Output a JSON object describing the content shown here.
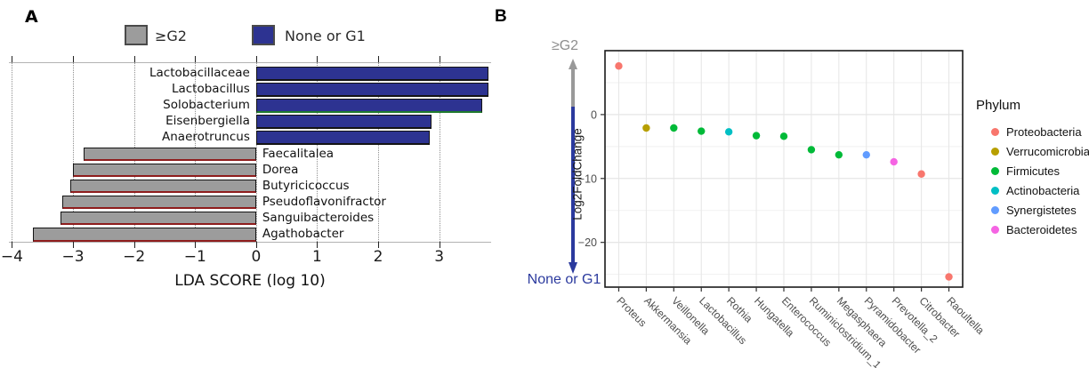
{
  "figure": {
    "background": "#ffffff"
  },
  "chart_data": [
    {
      "panel_label": "A",
      "type": "bar",
      "orientation": "horizontal",
      "xlabel": "LDA SCORE (log 10)",
      "xlim": [
        -4.05,
        3.85
      ],
      "xticks": [
        -4,
        -3,
        -2,
        -1,
        0,
        1,
        2,
        3
      ],
      "grid": "dotted-vertical",
      "legend": [
        {
          "label": "≥G2",
          "color": "#9c9c9c"
        },
        {
          "label": "None or G1",
          "color": "#2d3391"
        }
      ],
      "bar_edge_colors": {
        "negative_group": "#8f1d1d",
        "positive_group": "#141414",
        "Solobacterium": "#1f7a2e"
      },
      "bars": [
        {
          "name": "Lactobacillaceae",
          "group": "None or G1",
          "value": 3.8
        },
        {
          "name": "Lactobacillus",
          "group": "None or G1",
          "value": 3.8
        },
        {
          "name": "Solobacterium",
          "group": "None or G1",
          "value": 3.7
        },
        {
          "name": "Eisenbergiella",
          "group": "None or G1",
          "value": 2.87
        },
        {
          "name": "Anaerotruncus",
          "group": "None or G1",
          "value": 2.84
        },
        {
          "name": "Faecalitalea",
          "group": "≥G2",
          "value": -2.83
        },
        {
          "name": "Dorea",
          "group": "≥G2",
          "value": -3.0
        },
        {
          "name": "Butyricicoccus",
          "group": "≥G2",
          "value": -3.05
        },
        {
          "name": "Pseudoflavonifractor",
          "group": "≥G2",
          "value": -3.17
        },
        {
          "name": "Sanguibacteroides",
          "group": "≥G2",
          "value": -3.21
        },
        {
          "name": "Agathobacter",
          "group": "≥G2",
          "value": -3.65
        }
      ]
    },
    {
      "panel_label": "B",
      "type": "scatter",
      "ylabel": "Log2FoldChange",
      "y_axis_top_label": "≥G2",
      "y_axis_bottom_label": "None or G1",
      "ylim": [
        -27,
        10
      ],
      "yticks": [
        0,
        -10,
        -20
      ],
      "ytick_minor": [
        5,
        -5,
        -15,
        -25
      ],
      "grid": true,
      "legend_position": "right",
      "legend_title": "Phylum",
      "phyla": [
        {
          "name": "Proteobacteria",
          "color": "#F8766D"
        },
        {
          "name": "Verrucomicrobia",
          "color": "#B79F00"
        },
        {
          "name": "Firmicutes",
          "color": "#00BA38"
        },
        {
          "name": "Actinobacteria",
          "color": "#00BFC4"
        },
        {
          "name": "Synergistetes",
          "color": "#619CFF"
        },
        {
          "name": "Bacteroidetes",
          "color": "#F564E3"
        }
      ],
      "points": [
        {
          "genus": "Proteus",
          "phylum": "Proteobacteria",
          "log2fc": 7.6
        },
        {
          "genus": "Akkermansia",
          "phylum": "Verrucomicrobia",
          "log2fc": -2.1
        },
        {
          "genus": "Veillonella",
          "phylum": "Firmicutes",
          "log2fc": -2.1
        },
        {
          "genus": "Lactobacillus",
          "phylum": "Firmicutes",
          "log2fc": -2.6
        },
        {
          "genus": "Rothia",
          "phylum": "Actinobacteria",
          "log2fc": -2.7
        },
        {
          "genus": "Hungatella",
          "phylum": "Firmicutes",
          "log2fc": -3.3
        },
        {
          "genus": "Enterococcus",
          "phylum": "Firmicutes",
          "log2fc": -3.4
        },
        {
          "genus": "Ruminiclostridium_1",
          "phylum": "Firmicutes",
          "log2fc": -5.5
        },
        {
          "genus": "Megasphaera",
          "phylum": "Firmicutes",
          "log2fc": -6.3
        },
        {
          "genus": "Pyramidobacter",
          "phylum": "Synergistetes",
          "log2fc": -6.3
        },
        {
          "genus": "Prevotella_2",
          "phylum": "Bacteroidetes",
          "log2fc": -7.4
        },
        {
          "genus": "Citrobacter",
          "phylum": "Proteobacteria",
          "log2fc": -9.3
        },
        {
          "genus": "Raoultella",
          "phylum": "Proteobacteria",
          "log2fc": -25.4
        }
      ]
    }
  ]
}
